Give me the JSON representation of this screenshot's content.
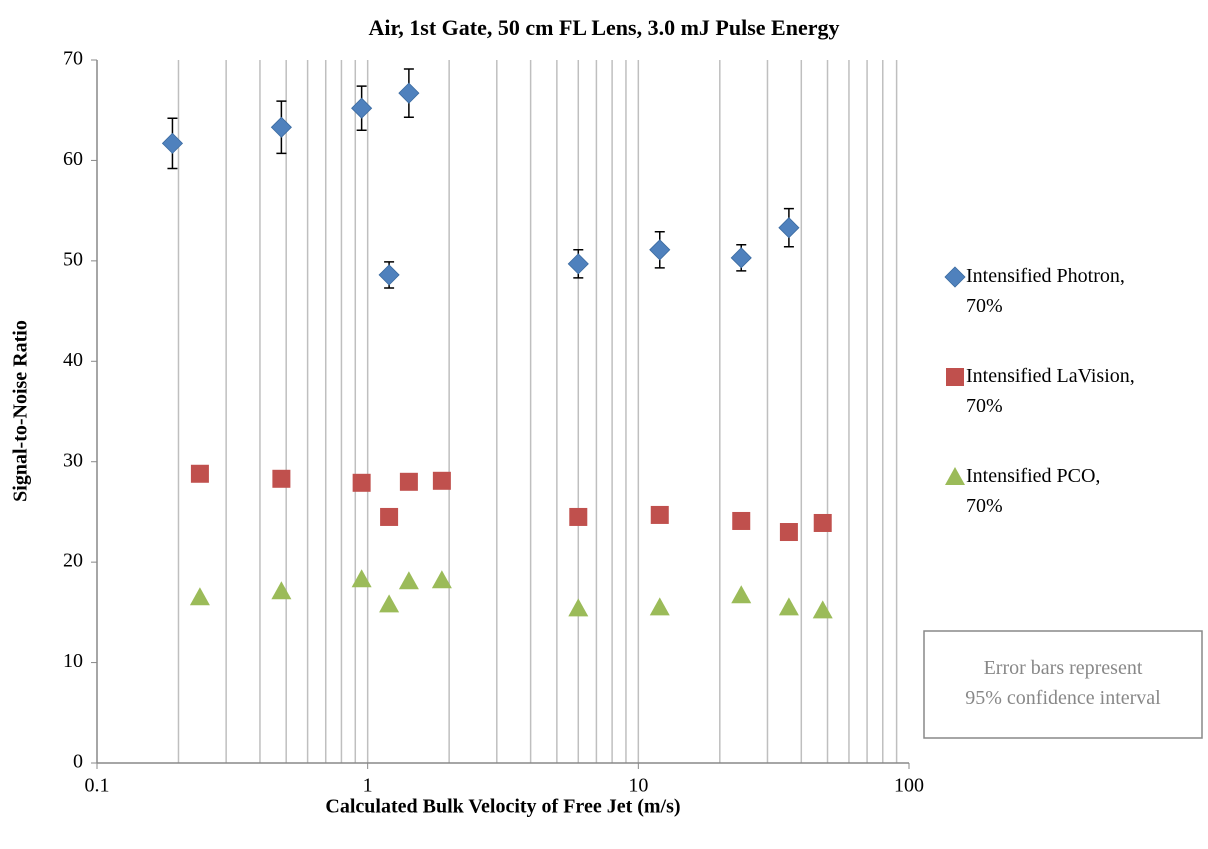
{
  "chart_data": {
    "type": "scatter",
    "title": "Air, 1st Gate, 50 cm FL Lens, 3.0 mJ Pulse Energy",
    "xlabel": "Calculated Bulk Velocity of Free Jet (m/s)",
    "ylabel": "Signal-to-Noise Ratio",
    "xscale": "log",
    "xlim": [
      0.1,
      100
    ],
    "xticks": [
      0.1,
      1,
      10,
      100
    ],
    "xgrid": [
      0.2,
      0.3,
      0.4,
      0.5,
      0.6,
      0.7,
      0.8,
      0.9,
      1,
      2,
      3,
      4,
      5,
      6,
      7,
      8,
      9,
      10,
      20,
      30,
      40,
      50,
      60,
      70,
      80,
      90
    ],
    "ylim": [
      0,
      70
    ],
    "yticks": [
      0,
      10,
      20,
      30,
      40,
      50,
      60,
      70
    ],
    "grid": true,
    "legend": "right",
    "annotation": "Error bars represent 95% confidence interval",
    "series": [
      {
        "name": "Intensified Photron, 70%",
        "color": "#4f81bd",
        "marker": "diamond",
        "x": [
          0.19,
          0.48,
          0.95,
          1.42,
          1.2,
          6,
          12,
          24,
          36
        ],
        "values": [
          61.7,
          63.3,
          65.2,
          66.7,
          48.6,
          49.7,
          51.1,
          50.3,
          53.3
        ],
        "errors": [
          2.5,
          2.6,
          2.2,
          2.4,
          1.3,
          1.4,
          1.8,
          1.3,
          1.9
        ]
      },
      {
        "name": "Intensified LaVision, 70%",
        "color": "#c0504d",
        "marker": "square",
        "x": [
          0.24,
          0.48,
          0.95,
          1.2,
          1.42,
          1.88,
          6,
          12,
          24,
          36,
          48
        ],
        "values": [
          28.8,
          28.3,
          27.9,
          24.5,
          28.0,
          28.1,
          24.5,
          24.7,
          24.1,
          23.0,
          23.9
        ]
      },
      {
        "name": "Intensified PCO, 70%",
        "color": "#9bbb59",
        "marker": "triangle",
        "x": [
          0.24,
          0.48,
          0.95,
          1.2,
          1.42,
          1.88,
          6,
          12,
          24,
          36,
          48
        ],
        "values": [
          16.5,
          17.1,
          18.3,
          15.8,
          18.1,
          18.2,
          15.4,
          15.5,
          16.7,
          15.5,
          15.2
        ]
      }
    ]
  }
}
